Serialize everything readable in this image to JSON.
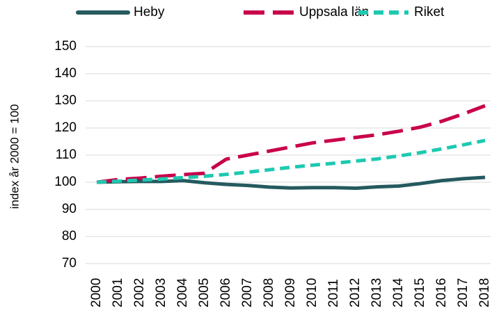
{
  "chart_data": {
    "type": "line",
    "y_label": "index år 2000 = 100",
    "x": [
      "2000",
      "2001",
      "2002",
      "2003",
      "2004",
      "2005",
      "2006",
      "2007",
      "2008",
      "2009",
      "2010",
      "2011",
      "2012",
      "2013",
      "2014",
      "2015",
      "2016",
      "2017",
      "2018"
    ],
    "series": [
      {
        "name": "Heby",
        "color": "#255a5f",
        "values": [
          100,
          100.2,
          100.3,
          100.3,
          100.6,
          99.8,
          99.2,
          98.8,
          98.2,
          97.9,
          98.0,
          98.0,
          97.8,
          98.3,
          98.6,
          99.5,
          100.6,
          101.3,
          101.8
        ]
      },
      {
        "name": "Uppsala län",
        "color": "#c8004b",
        "values": [
          100,
          101,
          101.5,
          102.2,
          102.8,
          103.3,
          108.5,
          110,
          111.5,
          113,
          114.5,
          115.5,
          116.5,
          117.5,
          118.8,
          120.3,
          122.5,
          125.2,
          128.2
        ]
      },
      {
        "name": "Riket",
        "color": "#1dc9b0",
        "values": [
          100,
          100.4,
          100.8,
          101.2,
          101.7,
          102.2,
          102.9,
          103.7,
          104.6,
          105.5,
          106.3,
          107.0,
          107.8,
          108.6,
          109.7,
          110.9,
          112.3,
          113.8,
          115.4
        ]
      }
    ],
    "ylim": [
      70,
      150
    ],
    "yticks": [
      70,
      80,
      90,
      100,
      110,
      120,
      130,
      140,
      150
    ],
    "grid": true,
    "legend": "top"
  }
}
